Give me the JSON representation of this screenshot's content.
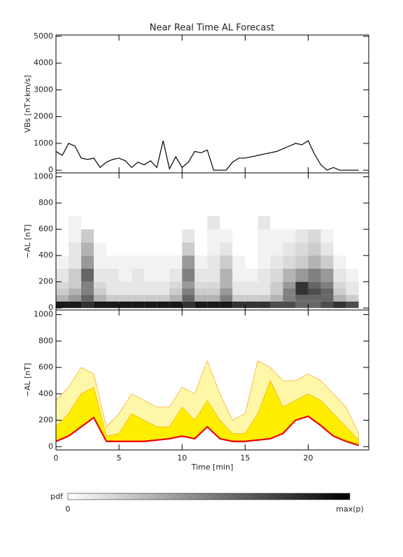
{
  "chart_data": [
    {
      "type": "line",
      "title": "Near Real Time AL Forecast",
      "y_label": "VBs [nT×km/s]",
      "xlim": [
        0,
        24.8
      ],
      "ylim": [
        -100,
        5050
      ],
      "yticks": [
        0,
        1000,
        2000,
        3000,
        4000,
        5000
      ],
      "x": [
        0,
        0.5,
        1,
        1.5,
        2,
        2.5,
        3,
        3.5,
        4,
        4.5,
        5,
        5.5,
        6,
        6.5,
        7,
        7.5,
        8,
        8.5,
        9,
        9.5,
        10,
        10.5,
        11,
        11.5,
        12,
        12.5,
        13,
        13.5,
        14,
        14.5,
        15,
        15.5,
        16,
        16.5,
        17,
        17.5,
        18,
        18.5,
        19,
        19.5,
        20,
        20.5,
        21,
        21.5,
        22,
        22.5,
        23,
        23.5,
        24
      ],
      "series": [
        {
          "color": "#000000",
          "values": [
            700,
            550,
            1000,
            900,
            450,
            400,
            450,
            100,
            300,
            400,
            450,
            350,
            100,
            300,
            200,
            350,
            100,
            1100,
            50,
            500,
            100,
            300,
            700,
            650,
            750,
            0,
            0,
            0,
            300,
            450,
            450,
            500,
            550,
            600,
            650,
            700,
            800,
            900,
            1000,
            950,
            1100,
            600,
            200,
            0,
            100,
            0,
            0,
            0,
            0
          ]
        }
      ]
    },
    {
      "type": "heatmap",
      "y_label": "−AL [nT]",
      "xlim": [
        0,
        24.8
      ],
      "ylim": [
        -15,
        1030
      ],
      "yticks": [
        0,
        200,
        400,
        600,
        800,
        1000
      ],
      "x_bins": [
        0,
        1,
        2,
        3,
        4,
        5,
        6,
        7,
        8,
        9,
        10,
        11,
        12,
        13,
        14,
        15,
        16,
        17,
        18,
        19,
        20,
        21,
        22,
        23,
        24
      ],
      "y_bins": [
        0,
        50,
        100,
        150,
        200,
        300,
        400,
        500,
        600,
        700
      ],
      "z": [
        [
          0.9,
          0.9,
          0.8,
          0.9,
          0.9,
          0.9,
          0.9,
          0.9,
          0.9,
          0.9,
          0.8,
          0.9,
          0.9,
          0.9,
          0.8,
          0.8,
          0.8,
          0.7,
          0.7,
          0.6,
          0.6,
          0.7,
          0.8,
          0.7
        ],
        [
          0.3,
          0.4,
          0.6,
          0.3,
          0.2,
          0.2,
          0.2,
          0.2,
          0.2,
          0.3,
          0.6,
          0.3,
          0.3,
          0.5,
          0.2,
          0.2,
          0.2,
          0.3,
          0.5,
          0.6,
          0.6,
          0.6,
          0.3,
          0.2
        ],
        [
          0.2,
          0.3,
          0.5,
          0.2,
          0.1,
          0.1,
          0.1,
          0.1,
          0.1,
          0.2,
          0.5,
          0.2,
          0.2,
          0.4,
          0.1,
          0.1,
          0.1,
          0.2,
          0.5,
          0.8,
          0.7,
          0.6,
          0.2,
          0.1
        ],
        [
          0.15,
          0.2,
          0.5,
          0.15,
          0.1,
          0.1,
          0.1,
          0.1,
          0.1,
          0.15,
          0.4,
          0.15,
          0.15,
          0.3,
          0.1,
          0.1,
          0.1,
          0.2,
          0.4,
          0.8,
          0.6,
          0.5,
          0.15,
          0.1
        ],
        [
          0.1,
          0.2,
          0.6,
          0.1,
          0.1,
          0.05,
          0.1,
          0.05,
          0.05,
          0.1,
          0.5,
          0.1,
          0.1,
          0.3,
          0.05,
          0.05,
          0.1,
          0.15,
          0.3,
          0.4,
          0.5,
          0.4,
          0.1,
          0.05
        ],
        [
          0.05,
          0.1,
          0.4,
          0.05,
          0.05,
          0.05,
          0.05,
          0.05,
          0.05,
          0.05,
          0.4,
          0.05,
          0.1,
          0.2,
          0.05,
          0,
          0.05,
          0.1,
          0.15,
          0.2,
          0.3,
          0.2,
          0.05,
          0
        ],
        [
          0,
          0.1,
          0.3,
          0.05,
          0,
          0,
          0,
          0,
          0,
          0,
          0.2,
          0,
          0.05,
          0.1,
          0,
          0,
          0.05,
          0.05,
          0.1,
          0.15,
          0.2,
          0.1,
          0,
          0
        ],
        [
          0,
          0.05,
          0.2,
          0,
          0,
          0,
          0,
          0,
          0,
          0,
          0.1,
          0,
          0.05,
          0.05,
          0,
          0,
          0.05,
          0.05,
          0.05,
          0.1,
          0.15,
          0.05,
          0,
          0
        ],
        [
          0,
          0.05,
          0,
          0,
          0,
          0,
          0,
          0,
          0,
          0,
          0,
          0,
          0.1,
          0,
          0,
          0,
          0.1,
          0,
          0,
          0,
          0,
          0,
          0,
          0
        ]
      ],
      "colorbar": {
        "label": "pdf",
        "min_label": "0",
        "max_label": "max(p)"
      }
    },
    {
      "type": "line",
      "y_label": "−AL [nT]",
      "x_label": "Time [min]",
      "xlim": [
        0,
        24.8
      ],
      "ylim": [
        -25,
        1035
      ],
      "yticks": [
        0,
        200,
        400,
        600,
        800,
        1000
      ],
      "xticks": [
        0,
        5,
        10,
        15,
        20
      ],
      "x": [
        0,
        1,
        2,
        3,
        4,
        5,
        6,
        7,
        8,
        9,
        10,
        11,
        12,
        13,
        14,
        15,
        16,
        17,
        18,
        19,
        20,
        21,
        22,
        23,
        24
      ],
      "bands": [
        {
          "color": "#fff7a8",
          "edge": "#f5a623",
          "lower": [
            40,
            80,
            150,
            220,
            40,
            40,
            40,
            40,
            50,
            60,
            80,
            60,
            150,
            60,
            40,
            40,
            50,
            60,
            100,
            200,
            230,
            160,
            80,
            40,
            10
          ],
          "upper": [
            350,
            450,
            600,
            550,
            150,
            250,
            400,
            350,
            300,
            300,
            450,
            400,
            650,
            400,
            200,
            250,
            650,
            600,
            500,
            500,
            550,
            500,
            400,
            300,
            100
          ]
        },
        {
          "color": "#ffee00",
          "edge": "#f5a623",
          "lower": [
            40,
            80,
            150,
            220,
            40,
            40,
            40,
            40,
            50,
            60,
            80,
            60,
            150,
            60,
            40,
            40,
            50,
            60,
            100,
            200,
            230,
            160,
            80,
            40,
            10
          ],
          "upper": [
            150,
            250,
            400,
            450,
            80,
            100,
            250,
            200,
            150,
            150,
            300,
            200,
            350,
            200,
            100,
            100,
            250,
            500,
            300,
            350,
            400,
            350,
            250,
            150,
            50
          ]
        }
      ],
      "series": [
        {
          "color": "#ee0000",
          "values": [
            40,
            80,
            150,
            220,
            40,
            40,
            40,
            40,
            50,
            60,
            80,
            60,
            150,
            60,
            40,
            40,
            50,
            60,
            100,
            200,
            230,
            160,
            80,
            40,
            10
          ]
        }
      ]
    }
  ]
}
